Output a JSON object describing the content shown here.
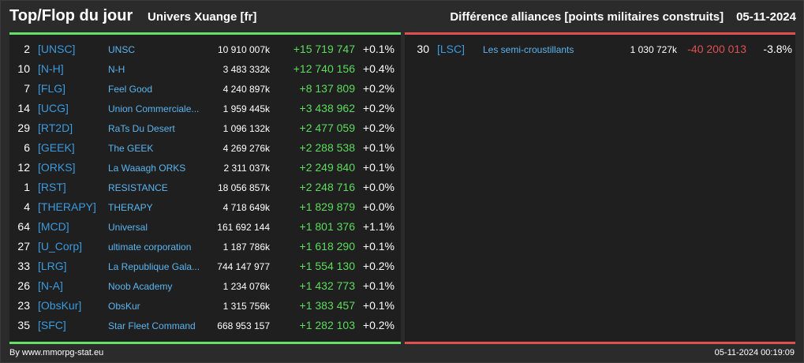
{
  "header": {
    "title": "Top/Flop du jour",
    "universe": "Univers Xuange [fr]",
    "subtitle": "Différence alliances [points militaires construits]",
    "date": "05-11-2024"
  },
  "colors": {
    "background": "#2b2b2b",
    "panel": "#1f1f1f",
    "top_accent": "#66e066",
    "flop_accent": "#e05050",
    "tag": "#3a9be0",
    "name": "#5bb5f0",
    "positive": "#5ddc5d",
    "negative": "#e05050"
  },
  "top": [
    {
      "rank": "2",
      "tag": "[UNSC]",
      "name": "UNSC",
      "points": "10 910 007k",
      "diff": "+15 719 747",
      "pct": "+0.1%"
    },
    {
      "rank": "10",
      "tag": "[N-H]",
      "name": "N-H",
      "points": "3 483 332k",
      "diff": "+12 740 156",
      "pct": "+0.4%"
    },
    {
      "rank": "7",
      "tag": "[FLG]",
      "name": "Feel Good",
      "points": "4 240 897k",
      "diff": "+8 137 809",
      "pct": "+0.2%"
    },
    {
      "rank": "14",
      "tag": "[UCG]",
      "name": "Union Commerciale...",
      "points": "1 959 445k",
      "diff": "+3 438 962",
      "pct": "+0.2%"
    },
    {
      "rank": "29",
      "tag": "[RT2D]",
      "name": "RaTs Du Desert",
      "points": "1 096 132k",
      "diff": "+2 477 059",
      "pct": "+0.2%"
    },
    {
      "rank": "6",
      "tag": "[GEEK]",
      "name": "The GEEK",
      "points": "4 269 276k",
      "diff": "+2 288 538",
      "pct": "+0.1%"
    },
    {
      "rank": "12",
      "tag": "[ORKS]",
      "name": "La Waaagh ORKS",
      "points": "2 311 037k",
      "diff": "+2 249 840",
      "pct": "+0.1%"
    },
    {
      "rank": "1",
      "tag": "[RST]",
      "name": "RESISTANCE",
      "points": "18 056 857k",
      "diff": "+2 248 716",
      "pct": "+0.0%"
    },
    {
      "rank": "4",
      "tag": "[THERAPY]",
      "name": "THERAPY",
      "points": "4 718 649k",
      "diff": "+1 829 879",
      "pct": "+0.0%"
    },
    {
      "rank": "64",
      "tag": "[MCD]",
      "name": "Universal",
      "points": "161 692 144",
      "diff": "+1 801 376",
      "pct": "+1.1%"
    },
    {
      "rank": "27",
      "tag": "[U_Corp]",
      "name": "ultimate corporation",
      "points": "1 187 786k",
      "diff": "+1 618 290",
      "pct": "+0.1%"
    },
    {
      "rank": "33",
      "tag": "[LRG]",
      "name": "La Republique Gala...",
      "points": "744 147 977",
      "diff": "+1 554 130",
      "pct": "+0.2%"
    },
    {
      "rank": "26",
      "tag": "[N-A]",
      "name": "Noob Academy",
      "points": "1 234 076k",
      "diff": "+1 432 773",
      "pct": "+0.1%"
    },
    {
      "rank": "23",
      "tag": "[ObsKur]",
      "name": "ObsKur",
      "points": "1 315 756k",
      "diff": "+1 383 457",
      "pct": "+0.1%"
    },
    {
      "rank": "35",
      "tag": "[SFC]",
      "name": "Star Fleet Command",
      "points": "668 953 157",
      "diff": "+1 282 103",
      "pct": "+0.2%"
    }
  ],
  "flop": [
    {
      "rank": "30",
      "tag": "[LSC]",
      "name": "Les semi-croustillants",
      "points": "1 030 727k",
      "diff": "-40 200 013",
      "pct": "-3.8%"
    }
  ],
  "footer": {
    "source": "By www.mmorpg-stat.eu",
    "timestamp": "05-11-2024 00:19:09"
  }
}
